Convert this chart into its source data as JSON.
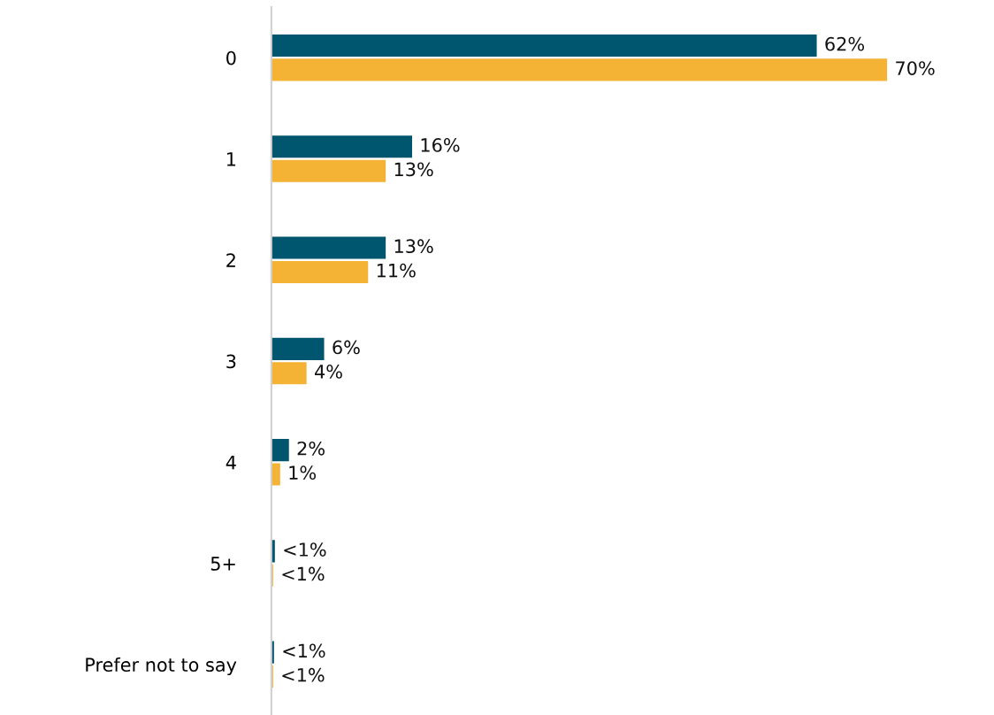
{
  "chart_data": {
    "type": "bar",
    "orientation": "horizontal",
    "categories": [
      "0",
      "1",
      "2",
      "3",
      "4",
      "5+",
      "Prefer not to say"
    ],
    "series": [
      {
        "color": "#00566f",
        "values": [
          62,
          16,
          13,
          6,
          2,
          0.4,
          0.3
        ],
        "value_labels": [
          "62%",
          "16%",
          "13%",
          "6%",
          "2%",
          "<1%",
          "<1%"
        ]
      },
      {
        "color": "#f5b335",
        "values": [
          70,
          13,
          11,
          4,
          1,
          0.2,
          0.2
        ],
        "value_labels": [
          "70%",
          "13%",
          "11%",
          "4%",
          "1%",
          "<1%",
          "<1%"
        ]
      }
    ],
    "grid": false
  }
}
